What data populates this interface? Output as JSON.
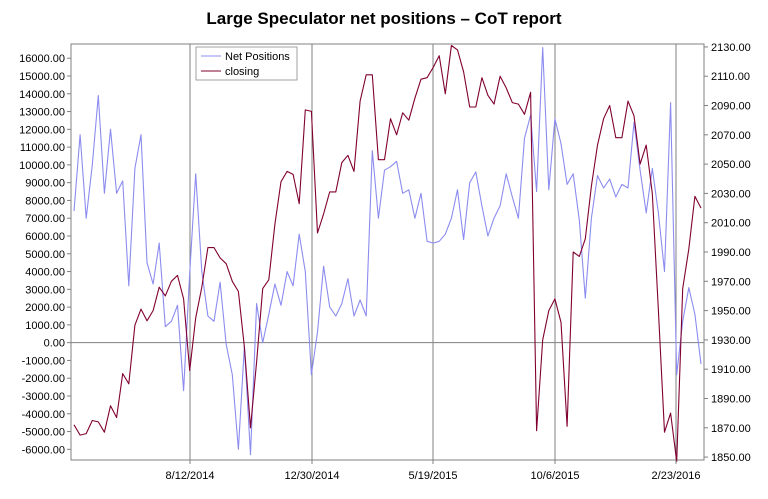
{
  "chart_data": {
    "type": "line",
    "title": "Large Speculator net positions – CoT report",
    "x_tick_labels": [
      "8/12/2014",
      "12/30/2014",
      "5/19/2015",
      "10/6/2015",
      "2/23/2016"
    ],
    "y_left_ticks": [
      "-6000.00",
      "-5000.00",
      "-4000.00",
      "-3000.00",
      "-2000.00",
      "-1000.00",
      "0.00",
      "1000.00",
      "2000.00",
      "3000.00",
      "4000.00",
      "5000.00",
      "6000.00",
      "7000.00",
      "8000.00",
      "9000.00",
      "10000.00",
      "11000.00",
      "12000.00",
      "13000.00",
      "14000.00",
      "15000.00",
      "16000.00"
    ],
    "y_right_ticks": [
      "1850.00",
      "1870.00",
      "1890.00",
      "1910.00",
      "1930.00",
      "1950.00",
      "1970.00",
      "1990.00",
      "2010.00",
      "2030.00",
      "2050.00",
      "2070.00",
      "2090.00",
      "2110.00",
      "2130.00"
    ],
    "ylim_left": [
      -6600,
      16800
    ],
    "ylim_right": [
      1848,
      2132
    ],
    "grid": "vertical lines at x ticks and horizontal zero line",
    "legend": "top-center",
    "series": [
      {
        "name": "Net Positions",
        "axis": "left",
        "color": "#8c8cf0",
        "values": [
          7400,
          11700,
          7000,
          10000,
          13900,
          8400,
          12000,
          8400,
          9100,
          3200,
          9800,
          11700,
          4500,
          3300,
          5600,
          900,
          1200,
          2100,
          -2700,
          3900,
          9500,
          4000,
          1500,
          1200,
          3400,
          -100,
          -1800,
          -6000,
          -200,
          -6300,
          2200,
          0,
          1600,
          3300,
          2100,
          4000,
          3200,
          6100,
          4000,
          -1800,
          600,
          4300,
          2000,
          1500,
          2200,
          3600,
          1500,
          2400,
          1500,
          10800,
          7000,
          9700,
          9900,
          10200,
          8400,
          8600,
          7000,
          8400,
          5700,
          5600,
          5700,
          6100,
          7000,
          8600,
          5800,
          9000,
          9600,
          7700,
          6000,
          7000,
          7700,
          9500,
          8200,
          7000,
          11500,
          12800,
          8500,
          16600,
          8600,
          12600,
          11200,
          8900,
          9500,
          6900,
          2500,
          7000,
          9400,
          8700,
          9200,
          8200,
          8900,
          8700,
          12400,
          9700,
          7300,
          9800,
          7300,
          4000,
          13500,
          -1800,
          1200,
          3100,
          1600,
          -1200
        ]
      },
      {
        "name": "closing",
        "axis": "right",
        "color": "#800030",
        "values": [
          1872,
          1865,
          1866,
          1875,
          1874,
          1867,
          1885,
          1877,
          1907,
          1900,
          1940,
          1951,
          1943,
          1950,
          1966,
          1960,
          1970,
          1974,
          1958,
          1909,
          1945,
          1966,
          1993,
          1993,
          1986,
          1982,
          1970,
          1963,
          1925,
          1870,
          1915,
          1965,
          1971,
          2009,
          2038,
          2045,
          2043,
          2023,
          2087,
          2086,
          2003,
          2016,
          2031,
          2031,
          2051,
          2056,
          2045,
          2093,
          2111,
          2111,
          2053,
          2053,
          2081,
          2070,
          2085,
          2080,
          2095,
          2108,
          2109,
          2116,
          2124,
          2098,
          2131,
          2128,
          2113,
          2089,
          2089,
          2109,
          2097,
          2091,
          2110,
          2102,
          2092,
          2091,
          2084,
          2099,
          1868,
          1930,
          1950,
          1958,
          1942,
          1871,
          1990,
          1987,
          1999,
          2035,
          2063,
          2081,
          2090,
          2068,
          2068,
          2093,
          2083,
          2050,
          2063,
          2030,
          1950,
          1867,
          1880,
          1847,
          1965,
          1992,
          2028,
          2020
        ]
      }
    ]
  }
}
